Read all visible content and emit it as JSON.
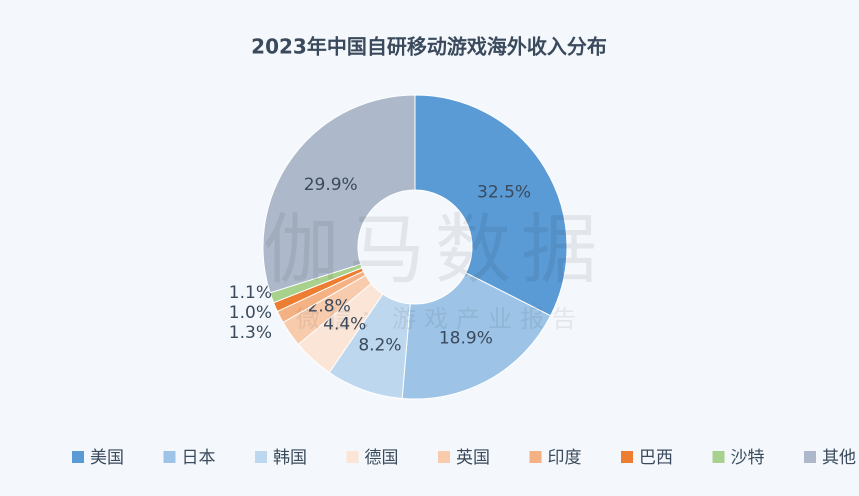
{
  "chart_data": {
    "type": "pie",
    "title": "2023年中国自研移动游戏海外收入分布",
    "categories": [
      "美国",
      "日本",
      "韩国",
      "德国",
      "英国",
      "印度",
      "巴西",
      "沙特",
      "其他"
    ],
    "values": [
      32.5,
      18.9,
      8.2,
      4.4,
      2.8,
      1.3,
      1.0,
      1.1,
      29.9
    ],
    "value_labels": [
      "32.5%",
      "18.9%",
      "8.2%",
      "4.4%",
      "2.8%",
      "1.3%",
      "1.0%",
      "1.1%",
      "29.9%"
    ],
    "colors": [
      "#5b9bd5",
      "#9dc3e6",
      "#bdd7ee",
      "#fbe5d6",
      "#f8cbad",
      "#f4b183",
      "#ed7d31",
      "#a9d18e",
      "#adb9ca"
    ],
    "legend": "bottom"
  },
  "watermark": {
    "title": "伽马数据",
    "subtitle": "微信：游戏产业报告"
  }
}
